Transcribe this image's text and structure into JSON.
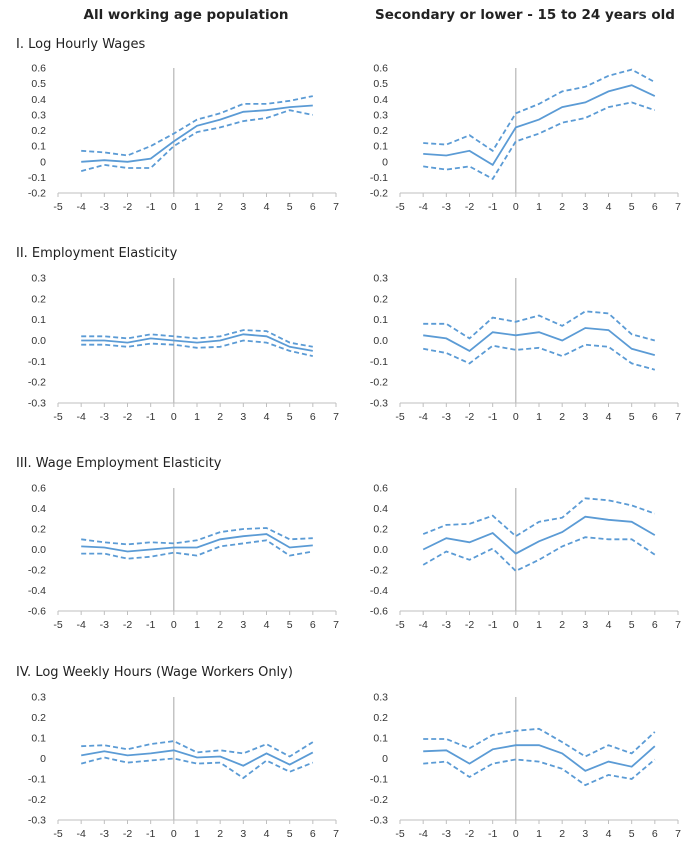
{
  "column_titles": [
    "All working age population",
    "Secondary or lower - 15 to 24 years old"
  ],
  "panel_titles": [
    "I. Log Hourly Wages",
    "II. Employment Elasticity",
    "III. Wage Employment Elasticity",
    "IV. Log Weekly Hours (Wage Workers Only)"
  ],
  "colors": {
    "series": "#5b9bd5",
    "axis": "#bfbfbf"
  },
  "chart_data": [
    {
      "type": "line",
      "panel": 1,
      "column": 1,
      "title": "",
      "x": [
        -4,
        -3,
        -2,
        -1,
        0,
        1,
        2,
        3,
        4,
        5,
        6
      ],
      "xlim": [
        -5,
        7
      ],
      "xticks": [
        -5,
        -4,
        -3,
        -2,
        -1,
        0,
        1,
        2,
        3,
        4,
        5,
        6,
        7
      ],
      "ylim": [
        -0.2,
        0.6
      ],
      "yticks": [
        "-0.2",
        "-0.1",
        "0",
        "0.1",
        "0.2",
        "0.3",
        "0.4",
        "0.5",
        "0.6"
      ],
      "series": [
        {
          "role": "estimate",
          "values": [
            0.0,
            0.01,
            0.0,
            0.02,
            0.13,
            0.23,
            0.27,
            0.32,
            0.33,
            0.35,
            0.36
          ]
        },
        {
          "role": "upper",
          "values": [
            0.07,
            0.06,
            0.04,
            0.1,
            0.18,
            0.27,
            0.31,
            0.37,
            0.37,
            0.39,
            0.42
          ]
        },
        {
          "role": "lower",
          "values": [
            -0.06,
            -0.02,
            -0.04,
            -0.04,
            0.1,
            0.19,
            0.22,
            0.26,
            0.28,
            0.33,
            0.3
          ]
        }
      ]
    },
    {
      "type": "line",
      "panel": 1,
      "column": 2,
      "title": "",
      "x": [
        -4,
        -3,
        -2,
        -1,
        0,
        1,
        2,
        3,
        4,
        5,
        6
      ],
      "xlim": [
        -5,
        7
      ],
      "xticks": [
        -5,
        -4,
        -3,
        -2,
        -1,
        0,
        1,
        2,
        3,
        4,
        5,
        6,
        7
      ],
      "ylim": [
        -0.2,
        0.6
      ],
      "yticks": [
        "-0.2",
        "-0.1",
        "0",
        "0.1",
        "0.2",
        "0.3",
        "0.4",
        "0.5",
        "0.6"
      ],
      "series": [
        {
          "role": "estimate",
          "values": [
            0.05,
            0.04,
            0.07,
            -0.02,
            0.22,
            0.27,
            0.35,
            0.38,
            0.45,
            0.49,
            0.42
          ]
        },
        {
          "role": "upper",
          "values": [
            0.12,
            0.11,
            0.17,
            0.07,
            0.31,
            0.37,
            0.45,
            0.48,
            0.55,
            0.59,
            0.51
          ]
        },
        {
          "role": "lower",
          "values": [
            -0.03,
            -0.05,
            -0.03,
            -0.11,
            0.13,
            0.18,
            0.25,
            0.28,
            0.35,
            0.38,
            0.33
          ]
        }
      ]
    },
    {
      "type": "line",
      "panel": 2,
      "column": 1,
      "title": "",
      "x": [
        -4,
        -3,
        -2,
        -1,
        0,
        1,
        2,
        3,
        4,
        5,
        6
      ],
      "xlim": [
        -5,
        7
      ],
      "xticks": [
        -5,
        -4,
        -3,
        -2,
        -1,
        0,
        1,
        2,
        3,
        4,
        5,
        6,
        7
      ],
      "ylim": [
        -0.3,
        0.3
      ],
      "yticks": [
        "-0.3",
        "-0.2",
        "-0.1",
        "0.0",
        "0.1",
        "0.2",
        "0.3"
      ],
      "series": [
        {
          "role": "estimate",
          "values": [
            0.0,
            0.0,
            -0.01,
            0.01,
            0.0,
            -0.01,
            0.0,
            0.03,
            0.02,
            -0.03,
            -0.05
          ]
        },
        {
          "role": "upper",
          "values": [
            0.02,
            0.02,
            0.01,
            0.03,
            0.02,
            0.01,
            0.02,
            0.05,
            0.045,
            -0.01,
            -0.03
          ]
        },
        {
          "role": "lower",
          "values": [
            -0.02,
            -0.02,
            -0.03,
            -0.015,
            -0.02,
            -0.035,
            -0.03,
            0.0,
            -0.01,
            -0.05,
            -0.075
          ]
        }
      ]
    },
    {
      "type": "line",
      "panel": 2,
      "column": 2,
      "title": "",
      "x": [
        -4,
        -3,
        -2,
        -1,
        0,
        1,
        2,
        3,
        4,
        5,
        6
      ],
      "xlim": [
        -5,
        7
      ],
      "xticks": [
        -5,
        -4,
        -3,
        -2,
        -1,
        0,
        1,
        2,
        3,
        4,
        5,
        6,
        7
      ],
      "ylim": [
        -0.3,
        0.3
      ],
      "yticks": [
        "-0.3",
        "-0.2",
        "-0.1",
        "0.0",
        "0.1",
        "0.2",
        "0.3"
      ],
      "series": [
        {
          "role": "estimate",
          "values": [
            0.025,
            0.01,
            -0.05,
            0.04,
            0.025,
            0.04,
            0.0,
            0.06,
            0.05,
            -0.04,
            -0.07
          ]
        },
        {
          "role": "upper",
          "values": [
            0.08,
            0.08,
            0.01,
            0.11,
            0.09,
            0.12,
            0.07,
            0.14,
            0.13,
            0.03,
            0.0
          ]
        },
        {
          "role": "lower",
          "values": [
            -0.04,
            -0.06,
            -0.11,
            -0.025,
            -0.045,
            -0.035,
            -0.075,
            -0.02,
            -0.03,
            -0.11,
            -0.14
          ]
        }
      ]
    },
    {
      "type": "line",
      "panel": 3,
      "column": 1,
      "title": "",
      "x": [
        -4,
        -3,
        -2,
        -1,
        0,
        1,
        2,
        3,
        4,
        5,
        6
      ],
      "xlim": [
        -5,
        7
      ],
      "xticks": [
        -5,
        -4,
        -3,
        -2,
        -1,
        0,
        1,
        2,
        3,
        4,
        5,
        6,
        7
      ],
      "ylim": [
        -0.6,
        0.6
      ],
      "yticks": [
        "-0.6",
        "-0.4",
        "-0.2",
        "0.0",
        "0.2",
        "0.4",
        "0.6"
      ],
      "series": [
        {
          "role": "estimate",
          "values": [
            0.03,
            0.02,
            -0.02,
            0.0,
            0.02,
            0.02,
            0.1,
            0.13,
            0.15,
            0.02,
            0.04
          ]
        },
        {
          "role": "upper",
          "values": [
            0.1,
            0.07,
            0.05,
            0.07,
            0.06,
            0.09,
            0.17,
            0.2,
            0.21,
            0.1,
            0.11
          ]
        },
        {
          "role": "lower",
          "values": [
            -0.04,
            -0.04,
            -0.09,
            -0.07,
            -0.03,
            -0.06,
            0.03,
            0.06,
            0.09,
            -0.06,
            -0.02
          ]
        }
      ]
    },
    {
      "type": "line",
      "panel": 3,
      "column": 2,
      "title": "",
      "x": [
        -4,
        -3,
        -2,
        -1,
        0,
        1,
        2,
        3,
        4,
        5,
        6
      ],
      "xlim": [
        -5,
        7
      ],
      "xticks": [
        -5,
        -4,
        -3,
        -2,
        -1,
        0,
        1,
        2,
        3,
        4,
        5,
        6,
        7
      ],
      "ylim": [
        -0.6,
        0.6
      ],
      "yticks": [
        "-0.6",
        "-0.4",
        "-0.2",
        "0.0",
        "0.2",
        "0.4",
        "0.6"
      ],
      "series": [
        {
          "role": "estimate",
          "values": [
            0.0,
            0.11,
            0.07,
            0.16,
            -0.04,
            0.08,
            0.17,
            0.32,
            0.29,
            0.27,
            0.14
          ]
        },
        {
          "role": "upper",
          "values": [
            0.15,
            0.24,
            0.25,
            0.33,
            0.13,
            0.27,
            0.31,
            0.5,
            0.48,
            0.43,
            0.35
          ]
        },
        {
          "role": "lower",
          "values": [
            -0.15,
            -0.02,
            -0.1,
            0.01,
            -0.21,
            -0.1,
            0.03,
            0.12,
            0.1,
            0.1,
            -0.05
          ]
        }
      ]
    },
    {
      "type": "line",
      "panel": 4,
      "column": 1,
      "title": "",
      "x": [
        -4,
        -3,
        -2,
        -1,
        0,
        1,
        2,
        3,
        4,
        5,
        6
      ],
      "xlim": [
        -5,
        7
      ],
      "xticks": [
        -5,
        -4,
        -3,
        -2,
        -1,
        0,
        1,
        2,
        3,
        4,
        5,
        6,
        7
      ],
      "ylim": [
        -0.3,
        0.3
      ],
      "yticks": [
        "-0.3",
        "-0.2",
        "-0.1",
        "0",
        "0.1",
        "0.2",
        "0.3"
      ],
      "series": [
        {
          "role": "estimate",
          "values": [
            0.015,
            0.035,
            0.015,
            0.025,
            0.04,
            0.005,
            0.01,
            -0.035,
            0.025,
            -0.03,
            0.03
          ]
        },
        {
          "role": "upper",
          "values": [
            0.06,
            0.065,
            0.045,
            0.07,
            0.085,
            0.03,
            0.04,
            0.025,
            0.07,
            0.01,
            0.08
          ]
        },
        {
          "role": "lower",
          "values": [
            -0.025,
            0.005,
            -0.02,
            -0.01,
            0.0,
            -0.025,
            -0.02,
            -0.095,
            -0.01,
            -0.065,
            -0.02
          ]
        }
      ]
    },
    {
      "type": "line",
      "panel": 4,
      "column": 2,
      "title": "",
      "x": [
        -4,
        -3,
        -2,
        -1,
        0,
        1,
        2,
        3,
        4,
        5,
        6
      ],
      "xlim": [
        -5,
        7
      ],
      "xticks": [
        -5,
        -4,
        -3,
        -2,
        -1,
        0,
        1,
        2,
        3,
        4,
        5,
        6,
        7
      ],
      "ylim": [
        -0.3,
        0.3
      ],
      "yticks": [
        "-0.3",
        "-0.2",
        "-0.1",
        "0",
        "0.1",
        "0.2",
        "0.3"
      ],
      "series": [
        {
          "role": "estimate",
          "values": [
            0.035,
            0.04,
            -0.025,
            0.045,
            0.065,
            0.065,
            0.025,
            -0.06,
            -0.015,
            -0.04,
            0.06
          ]
        },
        {
          "role": "upper",
          "values": [
            0.095,
            0.095,
            0.05,
            0.115,
            0.135,
            0.145,
            0.08,
            0.01,
            0.065,
            0.025,
            0.13
          ]
        },
        {
          "role": "lower",
          "values": [
            -0.025,
            -0.015,
            -0.09,
            -0.025,
            -0.005,
            -0.015,
            -0.05,
            -0.13,
            -0.08,
            -0.1,
            -0.005
          ]
        }
      ]
    }
  ]
}
